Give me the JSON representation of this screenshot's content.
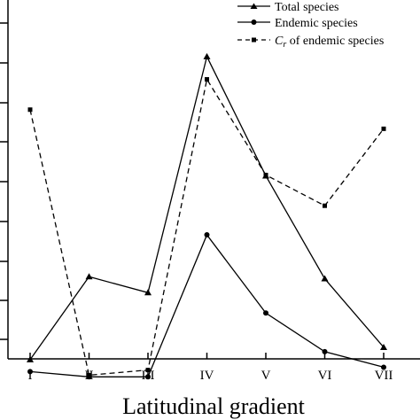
{
  "chart_data": {
    "type": "line",
    "title": "",
    "xlabel": "Latitudinal gradient",
    "ylabel": "",
    "categories": [
      "I",
      "II",
      "III",
      "IV",
      "V",
      "VI",
      "VII"
    ],
    "ylim": [
      0,
      1
    ],
    "grid": false,
    "legend_position": "top-right",
    "legend": {
      "total": "Total species",
      "endemic": "Endemic species",
      "cr_prefix": "C",
      "cr_sub": "r",
      "cr_suffix": " of endemic species"
    },
    "series": [
      {
        "key": "total",
        "name": "Total species",
        "style": "solid",
        "marker": "triangle",
        "values": [
          0.098,
          0.306,
          0.266,
          0.858,
          0.559,
          0.301,
          0.129
        ]
      },
      {
        "key": "endemic",
        "name": "Endemic species",
        "style": "solid",
        "marker": "circle",
        "values": [
          0.068,
          0.055,
          0.055,
          0.411,
          0.215,
          0.118,
          0.079
        ]
      },
      {
        "key": "cr",
        "name": "Cr of endemic species",
        "style": "dashed",
        "marker": "square",
        "values": [
          0.725,
          0.059,
          0.072,
          0.801,
          0.561,
          0.484,
          0.677
        ]
      }
    ]
  }
}
